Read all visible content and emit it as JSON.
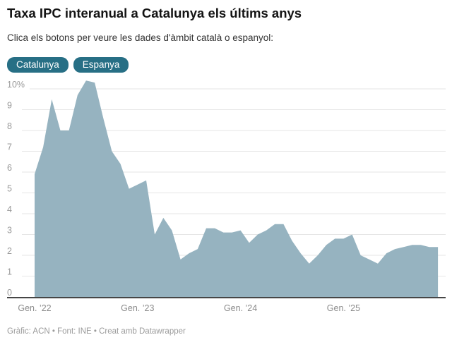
{
  "header": {
    "title": "Taxa IPC interanual a Catalunya els últims anys",
    "subtitle": "Clica els botons per veure les dades d'àmbit català o espanyol:"
  },
  "buttons": [
    {
      "label": "Catalunya",
      "selected": true
    },
    {
      "label": "Espanya",
      "selected": false
    }
  ],
  "footer": {
    "text": "Gràfic: ACN • Font: INE • Creat amb Datawrapper"
  },
  "colors": {
    "accent": "#276f85",
    "area_fill": "#96b3c0",
    "grid": "#e6e6e6",
    "axis": "#464646",
    "title_text": "#141414",
    "subtitle_text": "#333333",
    "tick_text": "#9a9a9a"
  },
  "chart_data": {
    "type": "area",
    "title": "Taxa IPC interanual a Catalunya els últims anys",
    "series_name": "Catalunya",
    "unit": "%",
    "x": [
      "2022-01",
      "2022-02",
      "2022-03",
      "2022-04",
      "2022-05",
      "2022-06",
      "2022-07",
      "2022-08",
      "2022-09",
      "2022-10",
      "2022-11",
      "2022-12",
      "2023-01",
      "2023-02",
      "2023-03",
      "2023-04",
      "2023-05",
      "2023-06",
      "2023-07",
      "2023-08",
      "2023-09",
      "2023-10",
      "2023-11",
      "2023-12",
      "2024-01",
      "2024-02",
      "2024-03",
      "2024-04",
      "2024-05",
      "2024-06",
      "2024-07",
      "2024-08",
      "2024-09",
      "2024-10",
      "2024-11",
      "2024-12",
      "2025-01",
      "2025-02",
      "2025-03",
      "2025-04",
      "2025-05",
      "2025-06",
      "2025-07",
      "2025-08",
      "2025-09",
      "2025-10",
      "2025-11",
      "2025-12"
    ],
    "values": [
      5.9,
      7.2,
      9.5,
      8.0,
      8.0,
      9.7,
      10.4,
      10.3,
      8.6,
      7.0,
      6.4,
      5.2,
      5.4,
      5.6,
      3.0,
      3.8,
      3.2,
      1.8,
      2.1,
      2.3,
      3.3,
      3.3,
      3.1,
      3.1,
      3.2,
      2.6,
      3.0,
      3.2,
      3.5,
      3.5,
      2.7,
      2.1,
      1.6,
      2.0,
      2.5,
      2.8,
      2.8,
      3.0,
      2.0,
      1.8,
      1.6,
      2.1,
      2.3,
      2.4,
      2.5,
      2.5,
      2.4,
      2.4
    ],
    "ylim": [
      0,
      10
    ],
    "ytick_labels": [
      "0",
      "1",
      "2",
      "3",
      "4",
      "5",
      "6",
      "7",
      "8",
      "9",
      "10%"
    ],
    "x_tick_labels": [
      "Gen. ’22",
      "Gen. ’23",
      "Gen. ’24",
      "Gen. ’25"
    ],
    "x_tick_indices": [
      0,
      12,
      24,
      36
    ],
    "grid": true,
    "legend": "none"
  }
}
